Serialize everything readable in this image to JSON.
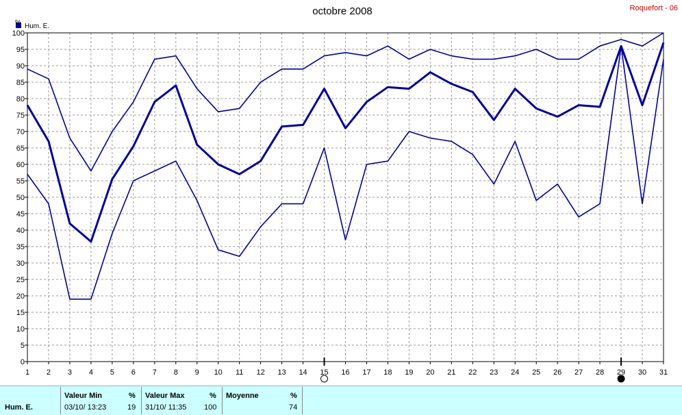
{
  "header": {
    "title": "octobre 2008",
    "station": "Roquefort - 06"
  },
  "legend": {
    "label": "Hum. E.",
    "color": "#000099"
  },
  "axis": {
    "y_unit": "%"
  },
  "chart_data": {
    "type": "line",
    "title": "octobre 2008",
    "xlabel": "",
    "ylabel": "%",
    "x": [
      1,
      2,
      3,
      4,
      5,
      6,
      7,
      8,
      9,
      10,
      11,
      12,
      13,
      14,
      15,
      16,
      17,
      18,
      19,
      20,
      21,
      22,
      23,
      24,
      25,
      26,
      27,
      28,
      29,
      30,
      31
    ],
    "xlim": [
      1,
      31
    ],
    "ylim": [
      0,
      100
    ],
    "y_ticks": [
      0,
      5,
      10,
      15,
      20,
      25,
      30,
      35,
      40,
      45,
      50,
      55,
      60,
      65,
      70,
      75,
      80,
      85,
      90,
      95,
      100
    ],
    "grid": true,
    "legend_position": "top-left",
    "series": [
      {
        "name": "Hum. E.",
        "role": "max",
        "values": [
          89,
          86,
          68,
          58,
          70,
          79,
          92,
          93,
          83,
          76,
          77,
          85,
          89,
          89,
          93,
          94,
          93,
          96,
          92,
          95,
          93,
          92,
          92,
          93,
          95,
          92,
          92,
          96,
          98,
          96,
          100
        ]
      },
      {
        "name": "Hum. E.",
        "role": "mean",
        "values": [
          78,
          67,
          42,
          36.5,
          55.5,
          65.5,
          79,
          84,
          66,
          60,
          57,
          61,
          71.5,
          72,
          83,
          71,
          79,
          83.5,
          83,
          88,
          84.5,
          82,
          73.5,
          83,
          77,
          74.5,
          78,
          77.5,
          96,
          78,
          97
        ]
      },
      {
        "name": "Hum. E.",
        "role": "min",
        "values": [
          57,
          48,
          19,
          19,
          39,
          55,
          58,
          61,
          49,
          34,
          32,
          41,
          48,
          48,
          65,
          37,
          60,
          61,
          70,
          68,
          67,
          63,
          54,
          67,
          49,
          54,
          44,
          48,
          96,
          48,
          92
        ]
      }
    ],
    "moon_phase_markers": [
      {
        "day": 15,
        "phase": "full-moon"
      },
      {
        "day": 29,
        "phase": "new-moon"
      }
    ]
  },
  "stats": {
    "series_label": "Hum.  E.",
    "min": {
      "header": "Valeur Min",
      "unit": "%",
      "date": "03/10/  13:23",
      "value": "19"
    },
    "max": {
      "header": "Valeur Max",
      "unit": "%",
      "date": "31/10/  11:35",
      "value": "100"
    },
    "mean": {
      "header": "Moyenne",
      "unit": "%",
      "value": "74"
    }
  }
}
